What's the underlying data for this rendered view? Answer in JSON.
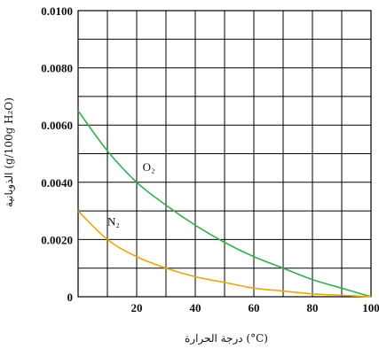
{
  "chart_data": {
    "type": "line",
    "xlabel": "درجة الحرارة (°C)",
    "ylabel": "الذوبانية (g/100g H₂O)",
    "xlim": [
      0,
      100
    ],
    "ylim": [
      0,
      0.01
    ],
    "x_ticks": [
      "20",
      "40",
      "60",
      "80",
      "100"
    ],
    "y_ticks": [
      "0",
      "0.0020",
      "0.0040",
      "0.0060",
      "0.0080",
      "0.0100"
    ],
    "grid": true,
    "series": [
      {
        "name": "O₂",
        "color": "#2db34a",
        "x": [
          0,
          10,
          20,
          30,
          40,
          50,
          60,
          70,
          80,
          90,
          100
        ],
        "y": [
          0.0065,
          0.0051,
          0.004,
          0.0032,
          0.0025,
          0.0019,
          0.0014,
          0.001,
          0.0006,
          0.0003,
          0.0
        ]
      },
      {
        "name": "N₂",
        "color": "#f0a800",
        "x": [
          0,
          10,
          20,
          30,
          40,
          50,
          60,
          70,
          80,
          90,
          100
        ],
        "y": [
          0.003,
          0.002,
          0.0014,
          0.001,
          0.0007,
          0.0005,
          0.0003,
          0.0002,
          0.0001,
          5e-05,
          0.0
        ]
      }
    ]
  }
}
